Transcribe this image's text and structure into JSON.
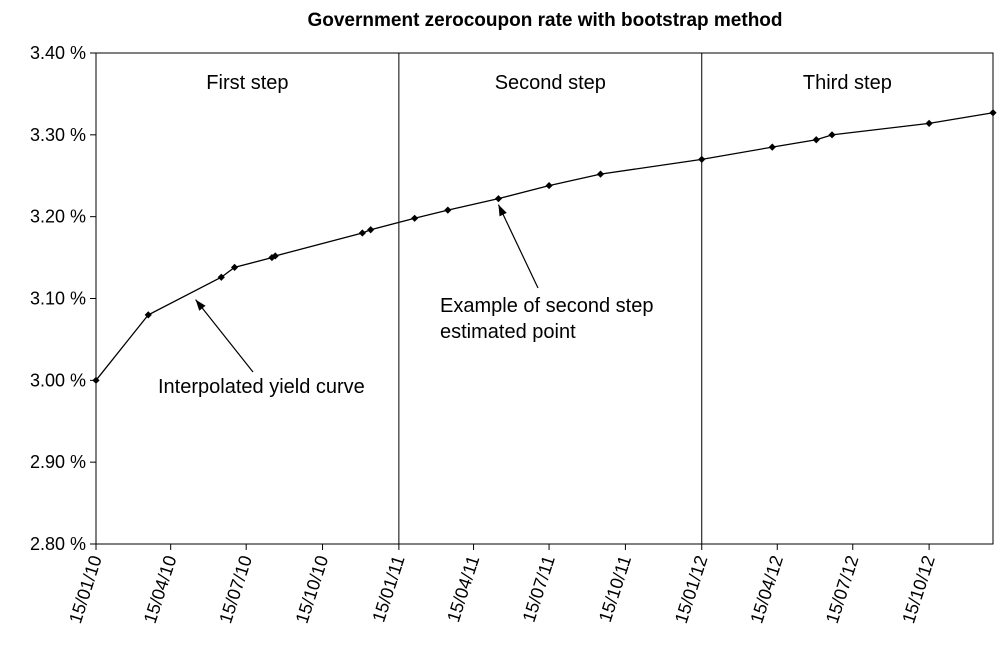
{
  "chart_data": {
    "type": "line",
    "title": "Government zerocoupon rate with bootstrap method",
    "xlabel": "",
    "ylabel": "",
    "ylim": [
      2.8,
      3.4
    ],
    "y_ticks": [
      "3.40 %",
      "3.30 %",
      "3.20 %",
      "3.10 %",
      "3.00 %",
      "2.90 %",
      "2.80 %"
    ],
    "y_tick_values": [
      3.4,
      3.3,
      3.2,
      3.1,
      3.0,
      2.9,
      2.8
    ],
    "xlim": [
      "15/01/10",
      "31/12/12"
    ],
    "x_ticks": [
      "15/01/10",
      "15/04/10",
      "15/07/10",
      "15/10/10",
      "15/01/11",
      "15/04/11",
      "15/07/11",
      "15/10/11",
      "15/01/12",
      "15/04/12",
      "15/07/12",
      "15/10/12"
    ],
    "grid": false,
    "legend": "none",
    "sections": [
      {
        "label": "First step",
        "start": "15/01/10",
        "end": "15/01/11"
      },
      {
        "label": "Second step",
        "start": "15/01/11",
        "end": "15/01/12"
      },
      {
        "label": "Third step",
        "start": "15/01/12",
        "end": "31/12/12"
      }
    ],
    "series": [
      {
        "x": [
          "15/01/10",
          "19/03/10",
          "15/06/10",
          "01/07/10",
          "15/08/10",
          "19/08/10",
          "02/12/10",
          "12/12/10",
          "03/02/11",
          "15/03/11",
          "15/05/11",
          "15/07/11",
          "15/09/11",
          "15/01/12",
          "09/04/12",
          "01/06/12",
          "20/06/12",
          "15/10/12",
          "31/12/12"
        ],
        "y": [
          3.0,
          3.08,
          3.126,
          3.138,
          3.15,
          3.152,
          3.18,
          3.184,
          3.198,
          3.208,
          3.222,
          3.238,
          3.252,
          3.27,
          3.285,
          3.294,
          3.3,
          3.314,
          3.327
        ],
        "color": "#000000"
      }
    ],
    "annotations": [
      {
        "lines": [
          "Interpolated yield curve"
        ],
        "target": {
          "x": "15/05/10",
          "y": 3.106
        }
      },
      {
        "lines": [
          "Example of second step",
          "estimated point"
        ],
        "target": {
          "x": "15/05/11",
          "y": 3.222
        }
      }
    ]
  }
}
